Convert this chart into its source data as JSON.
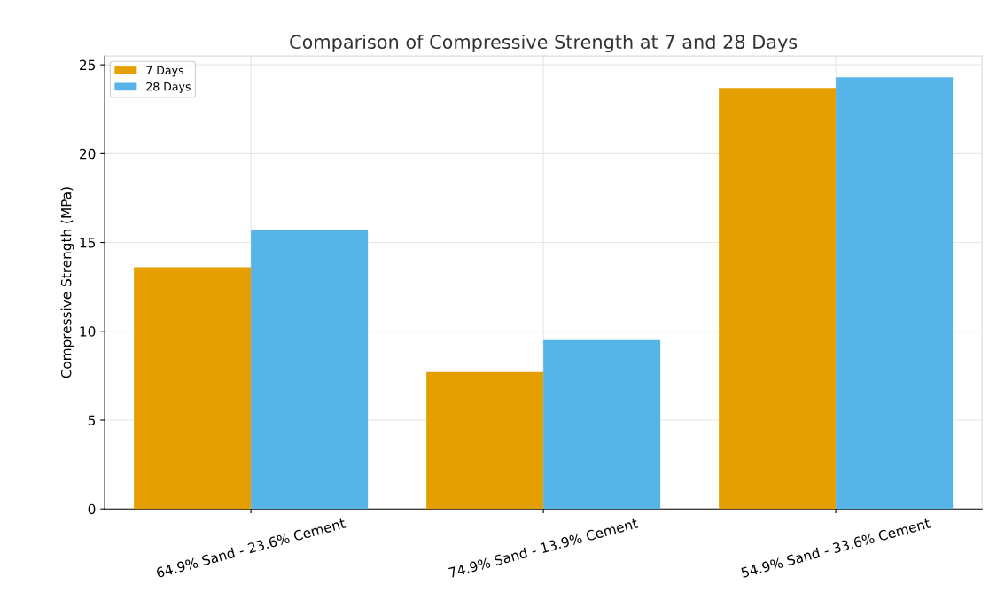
{
  "chart_data": {
    "type": "bar",
    "title": "Comparison of Compressive Strength at 7 and 28 Days",
    "ylabel": "Compressive Strength (MPa)",
    "categories": [
      "64.9% Sand - 23.6% Cement",
      "74.9% Sand - 13.9% Cement",
      "54.9% Sand - 33.6% Cement"
    ],
    "series": [
      {
        "name": "7 Days",
        "color": "#e69f00",
        "values": [
          13.6,
          7.7,
          23.7
        ]
      },
      {
        "name": "28 Days",
        "color": "#56b4e9",
        "values": [
          15.7,
          9.5,
          24.3
        ]
      }
    ],
    "ylim": [
      0,
      25.5
    ],
    "yticks": [
      0,
      5,
      10,
      15,
      20,
      25
    ],
    "grid": true,
    "legend": "top left"
  }
}
